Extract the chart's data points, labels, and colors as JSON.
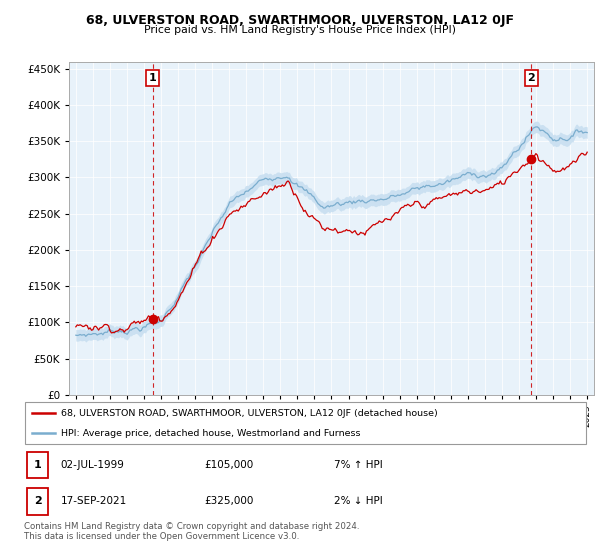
{
  "title": "68, ULVERSTON ROAD, SWARTHMOOR, ULVERSTON, LA12 0JF",
  "subtitle": "Price paid vs. HM Land Registry's House Price Index (HPI)",
  "sale1_date": "02-JUL-1999",
  "sale1_price": 105000,
  "sale1_hpi": "7% ↑ HPI",
  "sale2_date": "17-SEP-2021",
  "sale2_price": 325000,
  "sale2_hpi": "2% ↓ HPI",
  "legend_label1": "68, ULVERSTON ROAD, SWARTHMOOR, ULVERSTON, LA12 0JF (detached house)",
  "legend_label2": "HPI: Average price, detached house, Westmorland and Furness",
  "footer": "Contains HM Land Registry data © Crown copyright and database right 2024.\nThis data is licensed under the Open Government Licence v3.0.",
  "red_color": "#cc0000",
  "blue_color": "#7aadce",
  "blue_fill": "#c8dff0",
  "ylim": [
    0,
    460000
  ],
  "yticks": [
    0,
    50000,
    100000,
    150000,
    200000,
    250000,
    300000,
    350000,
    400000,
    450000
  ],
  "xlim_start": 1994.6,
  "xlim_end": 2025.4,
  "marker1_x": 1999.5,
  "marker1_y": 105000,
  "marker2_x": 2021.72,
  "marker2_y": 325000,
  "plot_bg": "#ddeeff"
}
